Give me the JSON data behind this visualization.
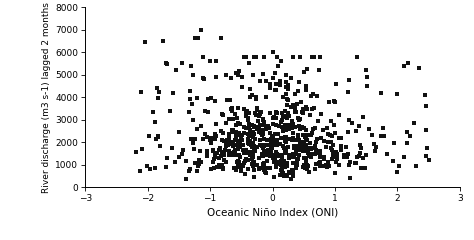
{
  "xlabel": "Oceanic Niño Index (ONI)",
  "ylabel": "River discharge (m3 s-1) lagged 2 months",
  "xlim": [
    -3,
    3
  ],
  "ylim": [
    0,
    8000
  ],
  "xticks": [
    -3,
    -2,
    -1,
    0,
    1,
    2,
    3
  ],
  "yticks": [
    0,
    1000,
    2000,
    3000,
    4000,
    5000,
    6000,
    7000,
    8000
  ],
  "dot_color": "#111111",
  "dot_size": 9,
  "background_color": "#ffffff",
  "seed": 42,
  "xlabel_fontsize": 7.5,
  "ylabel_fontsize": 6.5,
  "tick_labelsize": 6.5
}
